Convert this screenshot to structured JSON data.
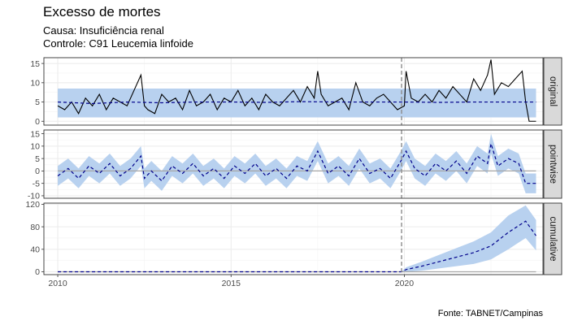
{
  "chart_data": {
    "type": "line",
    "title": "Excesso de mortes",
    "subtitle_lines": [
      "Causa: Insuficiência renal",
      "Controle: C91 Leucemia linfoide"
    ],
    "caption": "Fonte: TABNET/Campinas",
    "xlim": [
      2009.6,
      2024.0
    ],
    "x_ticks": [
      2010,
      2015,
      2020
    ],
    "x_tick_labels": [
      "2010",
      "2015",
      "2020"
    ],
    "intervention_x": 2019.92,
    "colors": {
      "observed": "#000000",
      "predicted": "#00008b",
      "band": "#b8d1ef",
      "reference": "#a6a6a6",
      "vline": "#8c8c8c",
      "grid": "#ebebeb",
      "strip": "#d9d9d9"
    },
    "panels": [
      {
        "label": "original",
        "ylim": [
          -1,
          16.5
        ],
        "y_ticks": [
          0,
          5,
          10,
          15
        ],
        "y_tick_labels": [
          "0",
          "5",
          "10",
          "15"
        ],
        "band_lower": 1,
        "band_upper": 8.5,
        "series": [
          {
            "role": "observed",
            "style": "solid",
            "x": [
              2010.0,
              2010.2,
              2010.4,
              2010.6,
              2010.8,
              2011.0,
              2011.2,
              2011.4,
              2011.6,
              2011.8,
              2012.0,
              2012.2,
              2012.4,
              2012.5,
              2012.6,
              2012.8,
              2013.0,
              2013.2,
              2013.4,
              2013.6,
              2013.8,
              2014.0,
              2014.2,
              2014.4,
              2014.6,
              2014.8,
              2015.0,
              2015.2,
              2015.4,
              2015.6,
              2015.8,
              2016.0,
              2016.2,
              2016.4,
              2016.6,
              2016.8,
              2017.0,
              2017.2,
              2017.4,
              2017.5,
              2017.6,
              2017.8,
              2018.0,
              2018.2,
              2018.4,
              2018.6,
              2018.8,
              2019.0,
              2019.2,
              2019.4,
              2019.6,
              2019.8,
              2020.0,
              2020.05,
              2020.2,
              2020.4,
              2020.6,
              2020.8,
              2021.0,
              2021.2,
              2021.4,
              2021.6,
              2021.8,
              2022.0,
              2022.2,
              2022.4,
              2022.5,
              2022.6,
              2022.8,
              2023.0,
              2023.2,
              2023.4,
              2023.5,
              2023.6,
              2023.8
            ],
            "y": [
              4,
              3,
              5,
              2,
              6,
              4,
              7,
              3,
              6,
              5,
              4,
              8,
              12,
              4,
              3,
              2,
              7,
              5,
              6,
              3,
              8,
              4,
              5,
              7,
              3,
              6,
              5,
              8,
              4,
              6,
              3,
              7,
              5,
              4,
              6,
              8,
              5,
              9,
              6,
              13,
              7,
              4,
              5,
              6,
              3,
              10,
              5,
              4,
              6,
              7,
              5,
              3,
              4,
              13,
              6,
              5,
              7,
              5,
              8,
              6,
              9,
              7,
              5,
              11,
              8,
              12,
              16,
              7,
              10,
              9,
              11,
              13,
              5,
              0,
              0
            ]
          },
          {
            "role": "predicted",
            "style": "dashed",
            "x": [
              2010.0,
              2011.0,
              2012.0,
              2013.0,
              2014.0,
              2015.0,
              2016.0,
              2017.0,
              2018.0,
              2019.0,
              2020.0,
              2021.0,
              2022.0,
              2023.0,
              2023.8
            ],
            "y": [
              5,
              4.6,
              5,
              4.8,
              5,
              5,
              4.9,
              5.1,
              5,
              5,
              5,
              4.9,
              5,
              5,
              5
            ]
          }
        ]
      },
      {
        "label": "pointwise",
        "ylim": [
          -11,
          16.5
        ],
        "y_ticks": [
          -10,
          -5,
          0,
          5,
          10,
          15
        ],
        "y_tick_labels": [
          "-10",
          "-5",
          "0",
          "5",
          "10",
          "15"
        ],
        "band_offset": [
          -4,
          4
        ],
        "series": [
          {
            "role": "predicted",
            "style": "dashed",
            "x": [
              2010.0,
              2010.3,
              2010.6,
              2010.9,
              2011.2,
              2011.5,
              2011.8,
              2012.1,
              2012.4,
              2012.5,
              2012.7,
              2013.0,
              2013.3,
              2013.6,
              2013.9,
              2014.2,
              2014.5,
              2014.8,
              2015.1,
              2015.4,
              2015.7,
              2016.0,
              2016.3,
              2016.6,
              2016.9,
              2017.2,
              2017.5,
              2017.8,
              2018.1,
              2018.4,
              2018.7,
              2019.0,
              2019.3,
              2019.6,
              2019.9,
              2020.05,
              2020.3,
              2020.6,
              2020.9,
              2021.2,
              2021.5,
              2021.8,
              2022.1,
              2022.4,
              2022.5,
              2022.7,
              2023.0,
              2023.3,
              2023.5,
              2023.6,
              2023.8
            ],
            "y": [
              -2,
              1,
              -3,
              2,
              -1,
              3,
              -2,
              1,
              6,
              -3,
              0,
              -4,
              2,
              -1,
              3,
              -2,
              1,
              -3,
              2,
              -1,
              3,
              -2,
              1,
              -3,
              2,
              0,
              8,
              -1,
              2,
              -2,
              5,
              -1,
              1,
              -3,
              4,
              8,
              1,
              -2,
              3,
              0,
              4,
              -1,
              6,
              3,
              11,
              2,
              5,
              3,
              -5,
              -5,
              -5
            ]
          }
        ]
      },
      {
        "label": "cumulative",
        "ylim": [
          -5,
          122
        ],
        "y_ticks": [
          0,
          40,
          80,
          120
        ],
        "y_tick_labels": [
          "0",
          "40",
          "80",
          "120"
        ],
        "series": [
          {
            "role": "predicted",
            "style": "dashed",
            "x": [
              2010.0,
              2019.92,
              2020.05,
              2020.5,
              2021.0,
              2021.5,
              2022.0,
              2022.5,
              2023.0,
              2023.5,
              2023.8
            ],
            "y": [
              0,
              0,
              4,
              10,
              18,
              26,
              34,
              46,
              70,
              90,
              64
            ],
            "lower": [
              0,
              0,
              0,
              2,
              6,
              10,
              14,
              22,
              40,
              60,
              38
            ],
            "upper": [
              0,
              0,
              8,
              18,
              30,
              42,
              54,
              70,
              100,
              118,
              92
            ]
          }
        ]
      }
    ]
  }
}
